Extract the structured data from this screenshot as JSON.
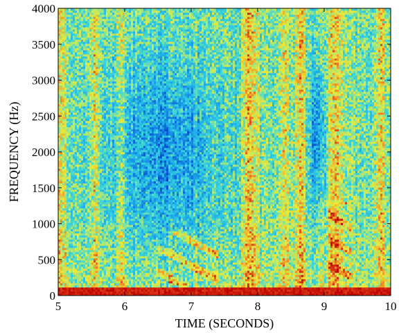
{
  "chart_data": {
    "type": "heatmap",
    "title": "",
    "xlabel": "TIME (SECONDS)",
    "ylabel": "FREQUENCY (Hz)",
    "xlim": [
      5,
      10
    ],
    "ylim": [
      0,
      4000
    ],
    "x_ticks": [
      5,
      6,
      7,
      8,
      9,
      10
    ],
    "y_ticks": [
      0,
      500,
      1000,
      1500,
      2000,
      2500,
      3000,
      3500,
      4000
    ],
    "colormap": "jet",
    "colors": {
      "low": "#22b8e6",
      "mid": "#e8ec3a",
      "high": "#d4341a",
      "peak": "#c80000"
    },
    "grid": false,
    "legend": "none",
    "features": {
      "low_band_hz": [
        0,
        120
      ],
      "bright_vertical_bands_s": [
        5.05,
        5.55,
        5.95,
        7.85,
        7.95,
        8.4,
        8.65,
        9.1,
        9.2,
        9.85
      ],
      "quiet_regions": [
        {
          "t": [
            6.0,
            7.2
          ],
          "f": [
            1000,
            3000
          ]
        },
        {
          "t": [
            8.8,
            9.0
          ],
          "f": [
            1500,
            3000
          ]
        }
      ],
      "harmonic_clusters": [
        {
          "t": [
            6.5,
            7.4
          ],
          "f": [
            150,
            900
          ]
        },
        {
          "t": [
            9.05,
            9.4
          ],
          "f": [
            200,
            1300
          ]
        }
      ]
    }
  }
}
